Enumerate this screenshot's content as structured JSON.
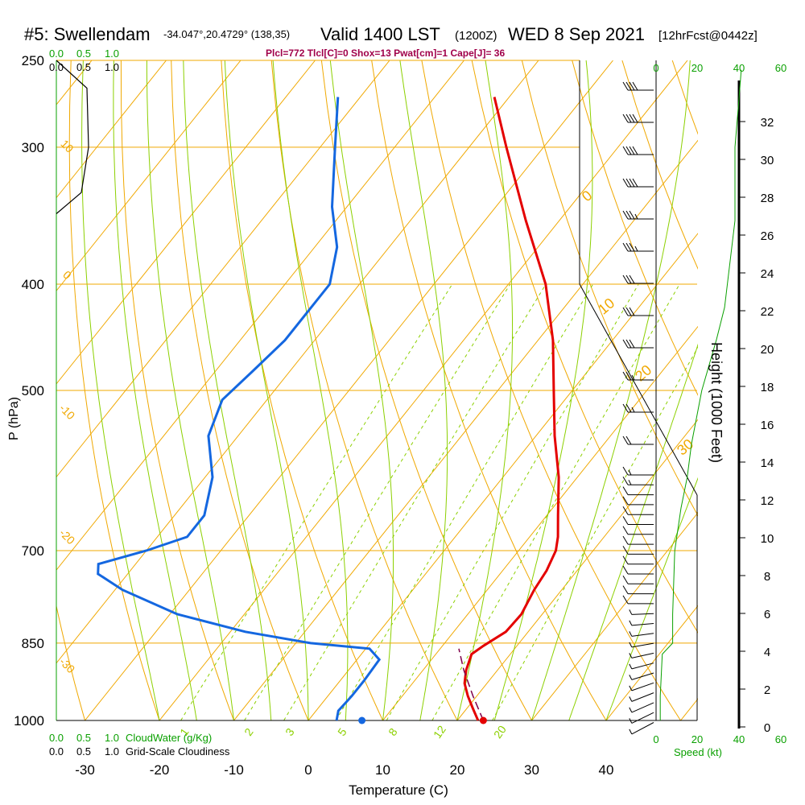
{
  "header": {
    "station": "#5: Swellendam",
    "coords": "-34.047°,20.4729° (138,35)",
    "valid": "Valid 1400 LST",
    "zulu": "(1200Z)",
    "date": "WED 8 Sep 2021",
    "forecast": "[12hrFcst@0442z]",
    "indices": "Plcl=772 Tlcl[C]=0 Shox=13 Pwat[cm]=1 Cape[J]= 36"
  },
  "chart_data": {
    "type": "skew-t",
    "xlabel": "Temperature (C)",
    "ylabel": "P (hPa)",
    "y2label": "Height (1000 Feet)",
    "speed_label": "Speed (kt)",
    "cloudwater_label": "CloudWater (g/Kg)",
    "cloudiness_label": "Grid-Scale Cloudiness",
    "x_ticks": [
      -30,
      -20,
      -10,
      0,
      10,
      20,
      30,
      40
    ],
    "p_ticks": [
      250,
      300,
      400,
      500,
      700,
      850,
      1000
    ],
    "height_ticks": [
      0,
      2,
      4,
      6,
      8,
      10,
      12,
      14,
      16,
      18,
      20,
      22,
      24,
      26,
      28,
      30,
      32
    ],
    "speed_ticks": [
      "0",
      "20",
      "40",
      "60"
    ],
    "cloud_ticks": [
      "0.0",
      "0.5",
      "1.0"
    ],
    "isotherm_labels": [
      "10",
      "0",
      "-10",
      "-20",
      "-30"
    ],
    "dry_adiabat_labels": [
      "0",
      "10",
      "20",
      "30"
    ],
    "mixing_ratio_labels": [
      "1",
      "2",
      "3",
      "5",
      "8",
      "12",
      "20"
    ],
    "temperature": [
      {
        "p": 1000,
        "t": 22.8
      },
      {
        "p": 975,
        "t": 20.8
      },
      {
        "p": 950,
        "t": 18.8
      },
      {
        "p": 925,
        "t": 17.0
      },
      {
        "p": 900,
        "t": 15.8
      },
      {
        "p": 870,
        "t": 14.8
      },
      {
        "p": 855,
        "t": 15.5
      },
      {
        "p": 830,
        "t": 17.0
      },
      {
        "p": 800,
        "t": 17.2
      },
      {
        "p": 760,
        "t": 16.3
      },
      {
        "p": 730,
        "t": 15.9
      },
      {
        "p": 700,
        "t": 15.0
      },
      {
        "p": 680,
        "t": 13.8
      },
      {
        "p": 650,
        "t": 11.5
      },
      {
        "p": 600,
        "t": 7.5
      },
      {
        "p": 550,
        "t": 2.5
      },
      {
        "p": 500,
        "t": -2.5
      },
      {
        "p": 450,
        "t": -8.0
      },
      {
        "p": 400,
        "t": -15.0
      },
      {
        "p": 350,
        "t": -24.5
      },
      {
        "p": 300,
        "t": -35.0
      },
      {
        "p": 270,
        "t": -42.0
      }
    ],
    "dewpoint": [
      {
        "p": 1000,
        "t": 3.8
      },
      {
        "p": 980,
        "t": 3.0
      },
      {
        "p": 950,
        "t": 3.2
      },
      {
        "p": 920,
        "t": 3.2
      },
      {
        "p": 880,
        "t": 3.0
      },
      {
        "p": 860,
        "t": 0.5
      },
      {
        "p": 850,
        "t": -8.0
      },
      {
        "p": 830,
        "t": -18.0
      },
      {
        "p": 800,
        "t": -29.0
      },
      {
        "p": 760,
        "t": -39.0
      },
      {
        "p": 735,
        "t": -44.0
      },
      {
        "p": 720,
        "t": -45.0
      },
      {
        "p": 700,
        "t": -40.0
      },
      {
        "p": 680,
        "t": -36.0
      },
      {
        "p": 650,
        "t": -36.0
      },
      {
        "p": 600,
        "t": -39.0
      },
      {
        "p": 550,
        "t": -44.0
      },
      {
        "p": 510,
        "t": -46.0
      },
      {
        "p": 480,
        "t": -45.0
      },
      {
        "p": 450,
        "t": -44.0
      },
      {
        "p": 400,
        "t": -44.0
      },
      {
        "p": 370,
        "t": -47.0
      },
      {
        "p": 340,
        "t": -52.0
      },
      {
        "p": 300,
        "t": -58.0
      },
      {
        "p": 270,
        "t": -63.0
      }
    ],
    "parcel": [
      {
        "p": 1000,
        "t": 23.5
      },
      {
        "p": 950,
        "t": 19.5
      },
      {
        "p": 900,
        "t": 15.5
      },
      {
        "p": 860,
        "t": 12.5
      }
    ],
    "surface_temp_marker": {
      "p": 1000,
      "t": 23.5
    },
    "surface_dewpoint_marker": {
      "p": 1000,
      "t": 7.2
    },
    "wind_speed_profile": [
      {
        "p": 1000,
        "kt": 2
      },
      {
        "p": 950,
        "kt": 2
      },
      {
        "p": 870,
        "kt": 3
      },
      {
        "p": 850,
        "kt": 8
      },
      {
        "p": 830,
        "kt": 8
      },
      {
        "p": 800,
        "kt": 8
      },
      {
        "p": 700,
        "kt": 9
      },
      {
        "p": 640,
        "kt": 12
      },
      {
        "p": 600,
        "kt": 15
      },
      {
        "p": 560,
        "kt": 17
      },
      {
        "p": 500,
        "kt": 22
      },
      {
        "p": 450,
        "kt": 29
      },
      {
        "p": 420,
        "kt": 33
      },
      {
        "p": 350,
        "kt": 38
      },
      {
        "p": 300,
        "kt": 38
      },
      {
        "p": 270,
        "kt": 40
      },
      {
        "p": 255,
        "kt": 41
      }
    ],
    "cloudiness_profile": [
      {
        "p": 250,
        "v": 0.0
      },
      {
        "p": 265,
        "v": 0.55
      },
      {
        "p": 300,
        "v": 0.58
      },
      {
        "p": 330,
        "v": 0.45
      },
      {
        "p": 345,
        "v": 0.0
      }
    ],
    "wind_barbs_kt": [
      40,
      40,
      40,
      40,
      35,
      35,
      30,
      30,
      30,
      25,
      25,
      20,
      15,
      15,
      10,
      10,
      10,
      10,
      10,
      10,
      10,
      10,
      10,
      10,
      10,
      10,
      5,
      5,
      5,
      5,
      5,
      5,
      5,
      5,
      5,
      5,
      5,
      5
    ]
  }
}
